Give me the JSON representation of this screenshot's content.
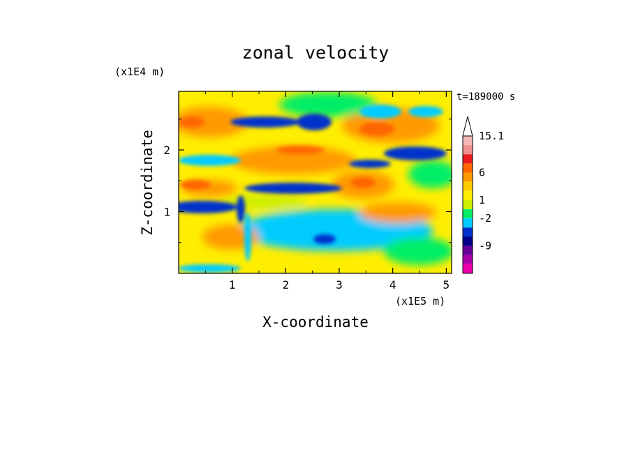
{
  "chart_data": {
    "type": "heatmap",
    "title": "zonal velocity",
    "xlabel": "X-coordinate",
    "ylabel": "Z-coordinate",
    "x_unit": "(x1E5 m)",
    "y_unit": "(x1E4 m)",
    "time_label": "t=189000 s",
    "xlim": [
      0,
      5.1
    ],
    "ylim": [
      0,
      2.95
    ],
    "x_ticks": [
      "1",
      "2",
      "3",
      "4",
      "5"
    ],
    "y_ticks": [
      "1",
      "2"
    ],
    "colorbar": {
      "labels": [
        "15.1",
        "6",
        "1",
        "-2",
        "-9"
      ],
      "colors": [
        "#ffffff",
        "#f5b8b8",
        "#ee9090",
        "#e81c1c",
        "#ff6600",
        "#ff9a00",
        "#ffcc00",
        "#ffee00",
        "#ccee00",
        "#00ee66",
        "#00ccff",
        "#0033cc",
        "#000088",
        "#660099",
        "#aa00aa",
        "#ee00aa"
      ]
    },
    "field_description_bands": [
      {
        "z": 2.5,
        "sign": "positive",
        "x_range": [
          0,
          1.2
        ]
      },
      {
        "z": 2.25,
        "sign": "negative",
        "x_range": [
          0.8,
          3.0
        ]
      },
      {
        "z": 1.5,
        "sign": "negative",
        "x_range": [
          1.1,
          3.5
        ]
      },
      {
        "z": 1.1,
        "sign": "negative",
        "x_range": [
          0,
          1.2
        ]
      },
      {
        "z": 0.6,
        "sign": "negative",
        "x_range": [
          1.5,
          4.2
        ]
      },
      {
        "z": 2.0,
        "sign": "positive",
        "x_range": [
          1.0,
          2.6
        ]
      },
      {
        "z": 2.4,
        "sign": "positive",
        "x_range": [
          3.3,
          4.5
        ]
      }
    ]
  }
}
